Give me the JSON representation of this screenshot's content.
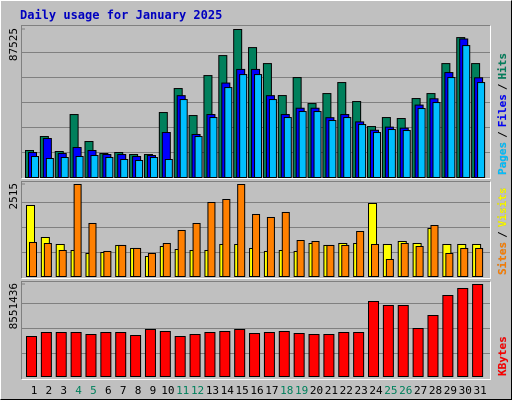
{
  "title": "Daily usage for January 2025",
  "legend_separator": "/",
  "chart_data": [
    {
      "type": "bar",
      "ylim": [
        0,
        87525
      ],
      "yticks": [
        87525
      ],
      "series": [
        {
          "name": "Hits",
          "color": "#00805c",
          "values": [
            15960,
            24230,
            15370,
            37230,
            21280,
            14180,
            14780,
            13590,
            13590,
            38420,
            52600,
            36640,
            60280,
            72100,
            87525,
            76830,
            67370,
            48460,
            59100,
            43730,
            49640,
            56150,
            44920,
            30140,
            35460,
            34870,
            46690,
            49640,
            67370,
            82740,
            67370
          ]
        },
        {
          "name": "Files",
          "color": "#0000ff",
          "values": [
            14780,
            23050,
            14180,
            17730,
            15960,
            13590,
            13590,
            12410,
            13000,
            26600,
            48400,
            25440,
            37230,
            55850,
            63910,
            63910,
            48400,
            37230,
            40960,
            40960,
            35370,
            37230,
            32890,
            27930,
            29790,
            29170,
            42820,
            46550,
            62060,
            81910,
            58960
          ]
        },
        {
          "name": "Pages",
          "color": "#00c0ff",
          "values": [
            12410,
            11230,
            11820,
            12410,
            13000,
            11820,
            10640,
            10050,
            11820,
            10640,
            46100,
            24230,
            35460,
            53190,
            60870,
            60870,
            46100,
            35460,
            39010,
            39010,
            33690,
            35460,
            31320,
            26600,
            28370,
            27780,
            40780,
            44330,
            59100,
            78010,
            56150
          ]
        }
      ]
    },
    {
      "type": "bar",
      "ylim": [
        0,
        2515
      ],
      "yticks": [
        2515
      ],
      "series": [
        {
          "name": "Visits",
          "color": "#ffff00",
          "values": [
            1941,
            1066,
            875,
            711,
            629,
            656,
            848,
            766,
            547,
            820,
            738,
            711,
            711,
            875,
            875,
            766,
            684,
            711,
            684,
            902,
            848,
            902,
            902,
            1996,
            875,
            957,
            902,
            1312,
            875,
            875,
            875
          ]
        },
        {
          "name": "Sites",
          "color": "#ff8000",
          "values": [
            930,
            902,
            711,
            2515,
            1449,
            684,
            848,
            766,
            629,
            902,
            1258,
            1449,
            2023,
            2105,
            2515,
            1695,
            1613,
            1750,
            984,
            957,
            848,
            848,
            1230,
            875,
            465,
            902,
            820,
            1394,
            629,
            766,
            766
          ]
        }
      ]
    },
    {
      "type": "bar",
      "ylim": [
        0,
        8551436
      ],
      "yticks": [
        8551436
      ],
      "categories": [
        "1",
        "2",
        "3",
        "4",
        "5",
        "6",
        "7",
        "8",
        "9",
        "10",
        "11",
        "12",
        "13",
        "14",
        "15",
        "16",
        "17",
        "18",
        "19",
        "20",
        "21",
        "22",
        "23",
        "24",
        "25",
        "26",
        "27",
        "28",
        "29",
        "30",
        "31"
      ],
      "category_colors": [
        "#000000",
        "#000000",
        "#000000",
        "#00805c",
        "#00805c",
        "#000000",
        "#000000",
        "#000000",
        "#000000",
        "#000000",
        "#00805c",
        "#00805c",
        "#000000",
        "#000000",
        "#000000",
        "#000000",
        "#000000",
        "#00805c",
        "#00805c",
        "#000000",
        "#000000",
        "#000000",
        "#000000",
        "#000000",
        "#00805c",
        "#00805c",
        "#000000",
        "#000000",
        "#000000",
        "#000000",
        "#000000"
      ],
      "series": [
        {
          "name": "KBytes",
          "color": "#ff0000",
          "values": [
            3718000,
            4089800,
            4089800,
            4089800,
            3903900,
            4089800,
            4089800,
            3811000,
            4368700,
            4182800,
            3718000,
            3903900,
            4089800,
            4182800,
            4368700,
            3996900,
            4089800,
            4182800,
            3996900,
            3903900,
            3903900,
            4089800,
            4089800,
            6971300,
            6599500,
            6599500,
            4461600,
            5670000,
            7529000,
            8180000,
            8551436
          ]
        }
      ]
    }
  ]
}
